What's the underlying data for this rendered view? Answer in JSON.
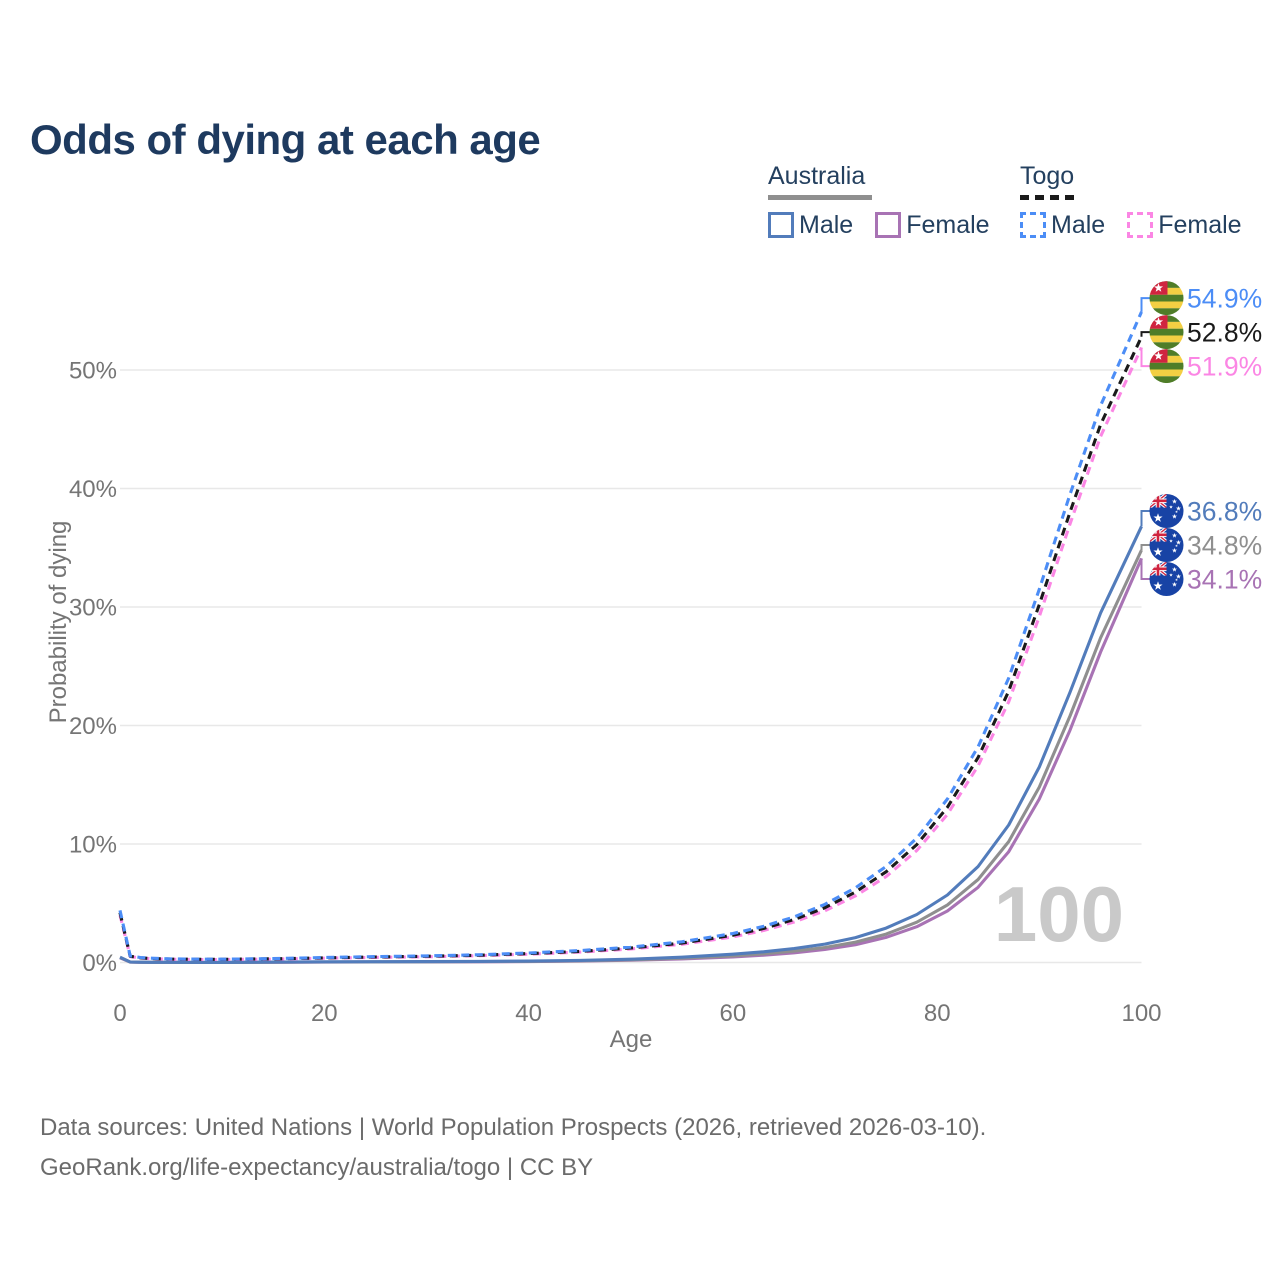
{
  "title": "Odds of dying at each age",
  "age_counter": "100",
  "legend": {
    "australia": {
      "label": "Australia",
      "male_label": "Male",
      "female_label": "Female"
    },
    "togo": {
      "label": "Togo",
      "male_label": "Male",
      "female_label": "Female"
    }
  },
  "axes": {
    "x_title": "Age",
    "y_title": "Probability of dying"
  },
  "footer": {
    "line1": "Data sources: United Nations | World Population Prospects (2026, retrieved 2026-03-10).",
    "line2": "GeoRank.org/life-expectancy/australia/togo | CC BY"
  },
  "colors": {
    "title_text": "#1e3a5f",
    "tick_text": "#757575",
    "gridline": "#e8e8e8",
    "watermark": "#c9c9c9",
    "footer_text": "#6b6b6b"
  },
  "chart_data": {
    "type": "line",
    "title": "Odds of dying at each age",
    "xlabel": "Age",
    "ylabel": "Probability of dying",
    "xlim": [
      0,
      100
    ],
    "ylim": [
      0,
      57
    ],
    "x_ticks": [
      0,
      20,
      40,
      60,
      80,
      100
    ],
    "y_ticks": [
      0,
      10,
      20,
      30,
      40,
      50
    ],
    "grid": "horizontal-only",
    "legend_position": "top-right",
    "x": [
      0,
      1,
      2,
      3,
      5,
      8,
      10,
      15,
      20,
      25,
      30,
      35,
      40,
      45,
      50,
      55,
      60,
      63,
      66,
      69,
      72,
      75,
      78,
      81,
      84,
      87,
      90,
      93,
      96,
      100
    ],
    "series": [
      {
        "name": "Australia Male",
        "country": "Australia",
        "sex": "Male",
        "style": "solid",
        "color": "#527cbb",
        "flag": "australia",
        "end_label": "36.8%",
        "values": [
          0.45,
          0.04,
          0.025,
          0.02,
          0.015,
          0.012,
          0.012,
          0.03,
          0.055,
          0.065,
          0.075,
          0.09,
          0.12,
          0.18,
          0.28,
          0.45,
          0.7,
          0.9,
          1.18,
          1.55,
          2.1,
          2.9,
          4.05,
          5.7,
          8.1,
          11.6,
          16.5,
          22.8,
          29.5,
          36.8
        ]
      },
      {
        "name": "Australia Both sexes",
        "country": "Australia",
        "sex": "Both",
        "style": "solid",
        "color": "#8f8f8f",
        "flag": "australia",
        "end_label": "34.8%",
        "values": [
          0.42,
          0.035,
          0.022,
          0.018,
          0.013,
          0.01,
          0.01,
          0.025,
          0.045,
          0.052,
          0.06,
          0.072,
          0.095,
          0.145,
          0.225,
          0.36,
          0.56,
          0.73,
          0.96,
          1.27,
          1.72,
          2.4,
          3.4,
          4.85,
          7.0,
          10.2,
          14.8,
          20.8,
          27.4,
          34.8
        ]
      },
      {
        "name": "Australia Female",
        "country": "Australia",
        "sex": "Female",
        "style": "solid",
        "color": "#a873b4",
        "flag": "australia",
        "end_label": "34.1%",
        "values": [
          0.4,
          0.03,
          0.02,
          0.015,
          0.011,
          0.009,
          0.009,
          0.02,
          0.035,
          0.04,
          0.048,
          0.058,
          0.078,
          0.12,
          0.19,
          0.3,
          0.47,
          0.62,
          0.82,
          1.1,
          1.5,
          2.12,
          3.02,
          4.35,
          6.35,
          9.35,
          13.8,
          19.6,
          26.2,
          34.1
        ]
      },
      {
        "name": "Togo Male",
        "country": "Togo",
        "sex": "Male",
        "style": "dashed",
        "color": "#4c8df6",
        "flag": "togo",
        "end_label": "54.9%",
        "values": [
          4.4,
          0.55,
          0.42,
          0.36,
          0.3,
          0.28,
          0.28,
          0.33,
          0.42,
          0.5,
          0.56,
          0.65,
          0.8,
          1.0,
          1.3,
          1.75,
          2.45,
          3.05,
          3.85,
          4.9,
          6.3,
          8.1,
          10.5,
          13.8,
          18.2,
          24.0,
          31.5,
          39.5,
          47.0,
          54.9
        ]
      },
      {
        "name": "Togo Both sexes",
        "country": "Togo",
        "sex": "Both",
        "style": "dashed",
        "color": "#1a1a1a",
        "flag": "togo",
        "end_label": "52.8%",
        "values": [
          4.2,
          0.52,
          0.4,
          0.34,
          0.29,
          0.27,
          0.27,
          0.31,
          0.39,
          0.46,
          0.52,
          0.61,
          0.75,
          0.94,
          1.22,
          1.64,
          2.3,
          2.87,
          3.63,
          4.62,
          5.95,
          7.65,
          9.95,
          13.1,
          17.3,
          22.9,
          30.2,
          38.0,
          45.4,
          52.8
        ]
      },
      {
        "name": "Togo Female",
        "country": "Togo",
        "sex": "Female",
        "style": "dashed",
        "color": "#fb86e4",
        "flag": "togo",
        "end_label": "51.9%",
        "values": [
          4.0,
          0.5,
          0.38,
          0.33,
          0.27,
          0.25,
          0.25,
          0.29,
          0.36,
          0.43,
          0.48,
          0.57,
          0.7,
          0.88,
          1.14,
          1.54,
          2.16,
          2.7,
          3.42,
          4.36,
          5.62,
          7.25,
          9.45,
          12.5,
          16.6,
          22.0,
          29.2,
          37.0,
          44.4,
          51.9
        ]
      }
    ]
  }
}
